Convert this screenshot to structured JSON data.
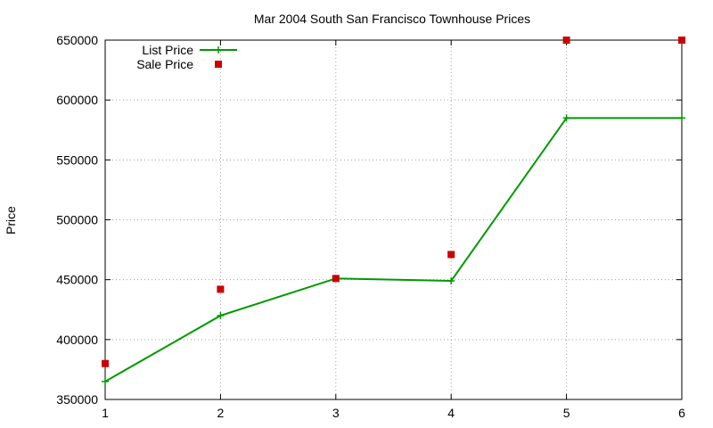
{
  "chart_data": {
    "type": "line",
    "title": "Mar 2004 South San Francisco Townhouse Prices",
    "xlabel": "",
    "ylabel": "Price",
    "xlim": [
      1,
      6
    ],
    "ylim": [
      350000,
      650000
    ],
    "xticks": [
      1,
      2,
      3,
      4,
      5,
      6
    ],
    "yticks": [
      350000,
      400000,
      450000,
      500000,
      550000,
      600000,
      650000
    ],
    "grid": true,
    "legend_position": "top-left",
    "series": [
      {
        "name": "List Price",
        "style": "linespoints",
        "marker": "plus",
        "color": "#009900",
        "x": [
          1,
          2,
          3,
          4,
          5,
          6
        ],
        "y": [
          365000,
          420000,
          451000,
          449000,
          585000,
          585000
        ]
      },
      {
        "name": "Sale Price",
        "style": "points",
        "marker": "square",
        "color": "#cc0000",
        "x": [
          1,
          2,
          3,
          4,
          5,
          6
        ],
        "y": [
          380000,
          442000,
          451000,
          471000,
          650000,
          650000
        ]
      }
    ]
  }
}
